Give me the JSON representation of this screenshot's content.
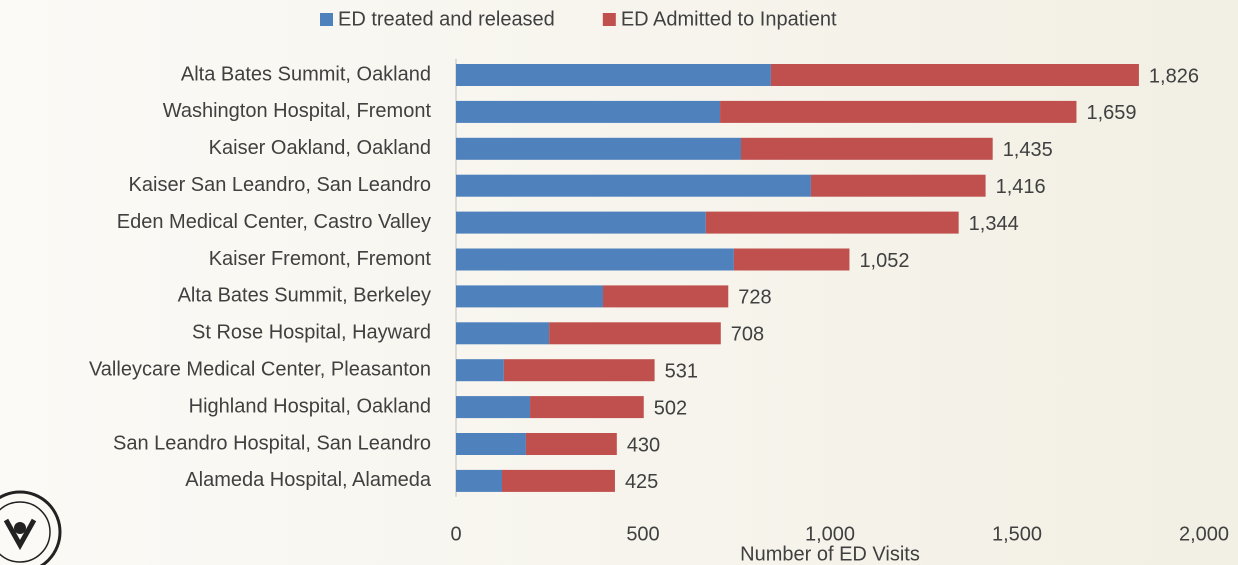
{
  "chart_data": {
    "type": "stacked-horizontal-bar",
    "x_label": "Number of ED Visits",
    "categories": [
      "Alta Bates Summit, Oakland",
      "Washington Hospital, Fremont",
      "Kaiser Oakland, Oakland",
      "Kaiser San Leandro, San Leandro",
      "Eden Medical Center, Castro Valley",
      "Kaiser Fremont, Fremont",
      "Alta Bates Summit, Berkeley",
      "St Rose Hospital, Hayward",
      "Valleycare Medical Center, Pleasanton",
      "Highland Hospital, Oakland",
      "San Leandro Hospital, San Leandro",
      "Alameda Hospital, Alameda"
    ],
    "series": [
      {
        "name": "ED treated and released",
        "color": "#4f81bd",
        "values": [
          842,
          706,
          762,
          949,
          668,
          743,
          393,
          249,
          128,
          198,
          187,
          123
        ]
      },
      {
        "name": "ED Admitted to Inpatient",
        "color": "#c0504d",
        "values": [
          984,
          953,
          673,
          467,
          676,
          309,
          335,
          459,
          403,
          304,
          243,
          302
        ]
      }
    ],
    "totals": [
      1826,
      1659,
      1435,
      1416,
      1344,
      1052,
      728,
      708,
      531,
      502,
      430,
      425
    ],
    "total_labels": [
      "1,826",
      "1,659",
      "1,435",
      "1,416",
      "1,344",
      "1,052",
      "728",
      "708",
      "531",
      "502",
      "430",
      "425"
    ],
    "xlim": [
      0,
      2000
    ],
    "xticks": [
      0,
      500,
      {
        "value": 1000,
        "label": "1,000"
      },
      {
        "value": 1500,
        "label": "1,500"
      },
      {
        "value": 2000,
        "label": "2,000"
      }
    ],
    "legend": "top"
  }
}
